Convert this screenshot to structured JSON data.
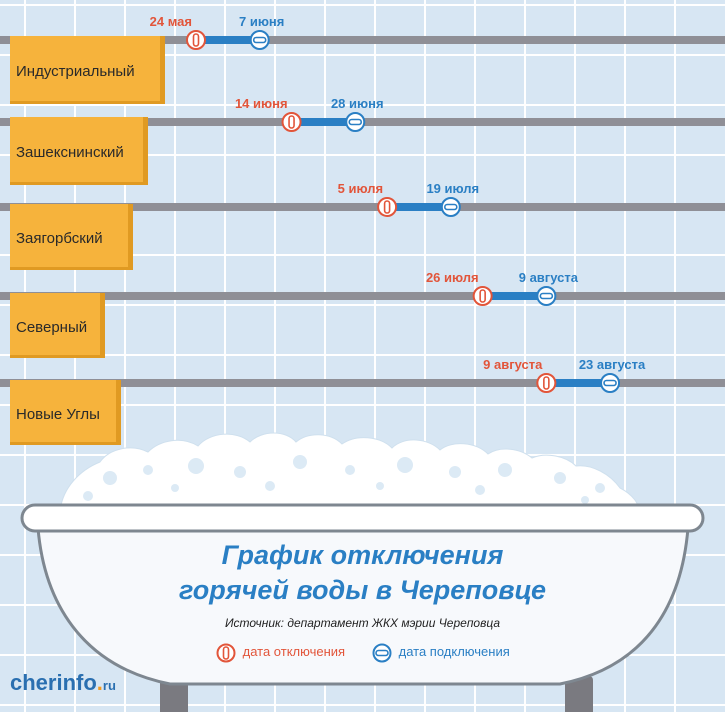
{
  "title_line1": "График отключения",
  "title_line2": "горячей воды в Череповце",
  "source": "Источник: департамент ЖКХ мэрии Череповца",
  "legend": {
    "off_label": "дата отключения",
    "on_label": "дата подключения"
  },
  "logo": {
    "main": "cherinfo",
    "dot": ".",
    "suffix": "ru"
  },
  "colors": {
    "off": "#e2553a",
    "on": "#2a7fc4",
    "towel": "#f6b33c",
    "pipe": "#8f8f96",
    "tiles": "#d7e6f3"
  },
  "chart_data": {
    "type": "timeline",
    "title": "График отключения горячей воды в Череповце",
    "rows": [
      {
        "district": "Индустриальный",
        "off": "24 мая",
        "on": "7 июня"
      },
      {
        "district": "Зашекснинский",
        "off": "14 июня",
        "on": "28 июня"
      },
      {
        "district": "Заягорбский",
        "off": "5 июля",
        "on": "19 июля"
      },
      {
        "district": "Северный",
        "off": "26 июля",
        "on": "9 августа"
      },
      {
        "district": "Новые Углы",
        "off": "9 августа",
        "on": "23 августа"
      }
    ]
  }
}
